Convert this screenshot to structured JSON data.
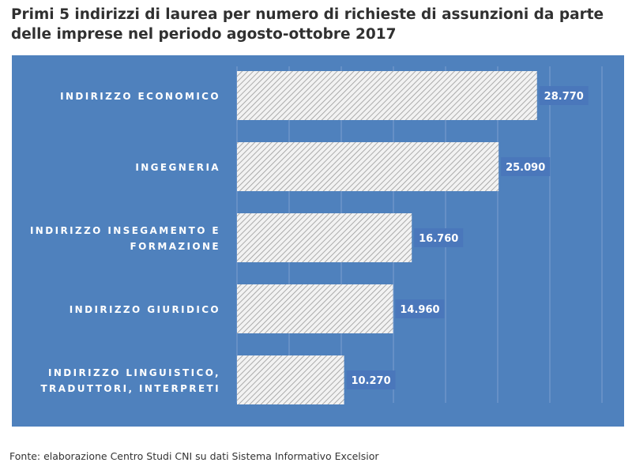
{
  "title": {
    "line1": "Primi 5 indirizzi di laurea per numero di richieste di assunzioni da parte",
    "line2": "delle imprese nel periodo agosto-ottobre 2017"
  },
  "source": "Fonte: elaborazione Centro Studi CNI su dati Sistema Informativo Excelsior",
  "colors": {
    "background": "#4f81bd",
    "bar_fill": "#f2f2f2",
    "bar_hatch": "#9a9a9a",
    "value_box": "#4a77bb",
    "label_text": "#ffffff",
    "gridline": "#7d9fcf"
  },
  "chart_data": {
    "type": "bar",
    "orientation": "horizontal",
    "categories": [
      [
        "INDIRIZZO ECONOMICO"
      ],
      [
        "INGEGNERIA"
      ],
      [
        "INDIRIZZO INSEGAMENTO E",
        "FORMAZIONE"
      ],
      [
        "INDIRIZZO GIURIDICO"
      ],
      [
        "INDIRIZZO LINGUISTICO,",
        "TRADUTTORI, INTERPRETI"
      ]
    ],
    "values": [
      28770,
      25090,
      16760,
      14960,
      10270
    ],
    "value_labels": [
      "28.770",
      "25.090",
      "16.760",
      "14.960",
      "10.270"
    ],
    "xlim": [
      0,
      35000
    ],
    "grid": true,
    "legend": "none"
  }
}
